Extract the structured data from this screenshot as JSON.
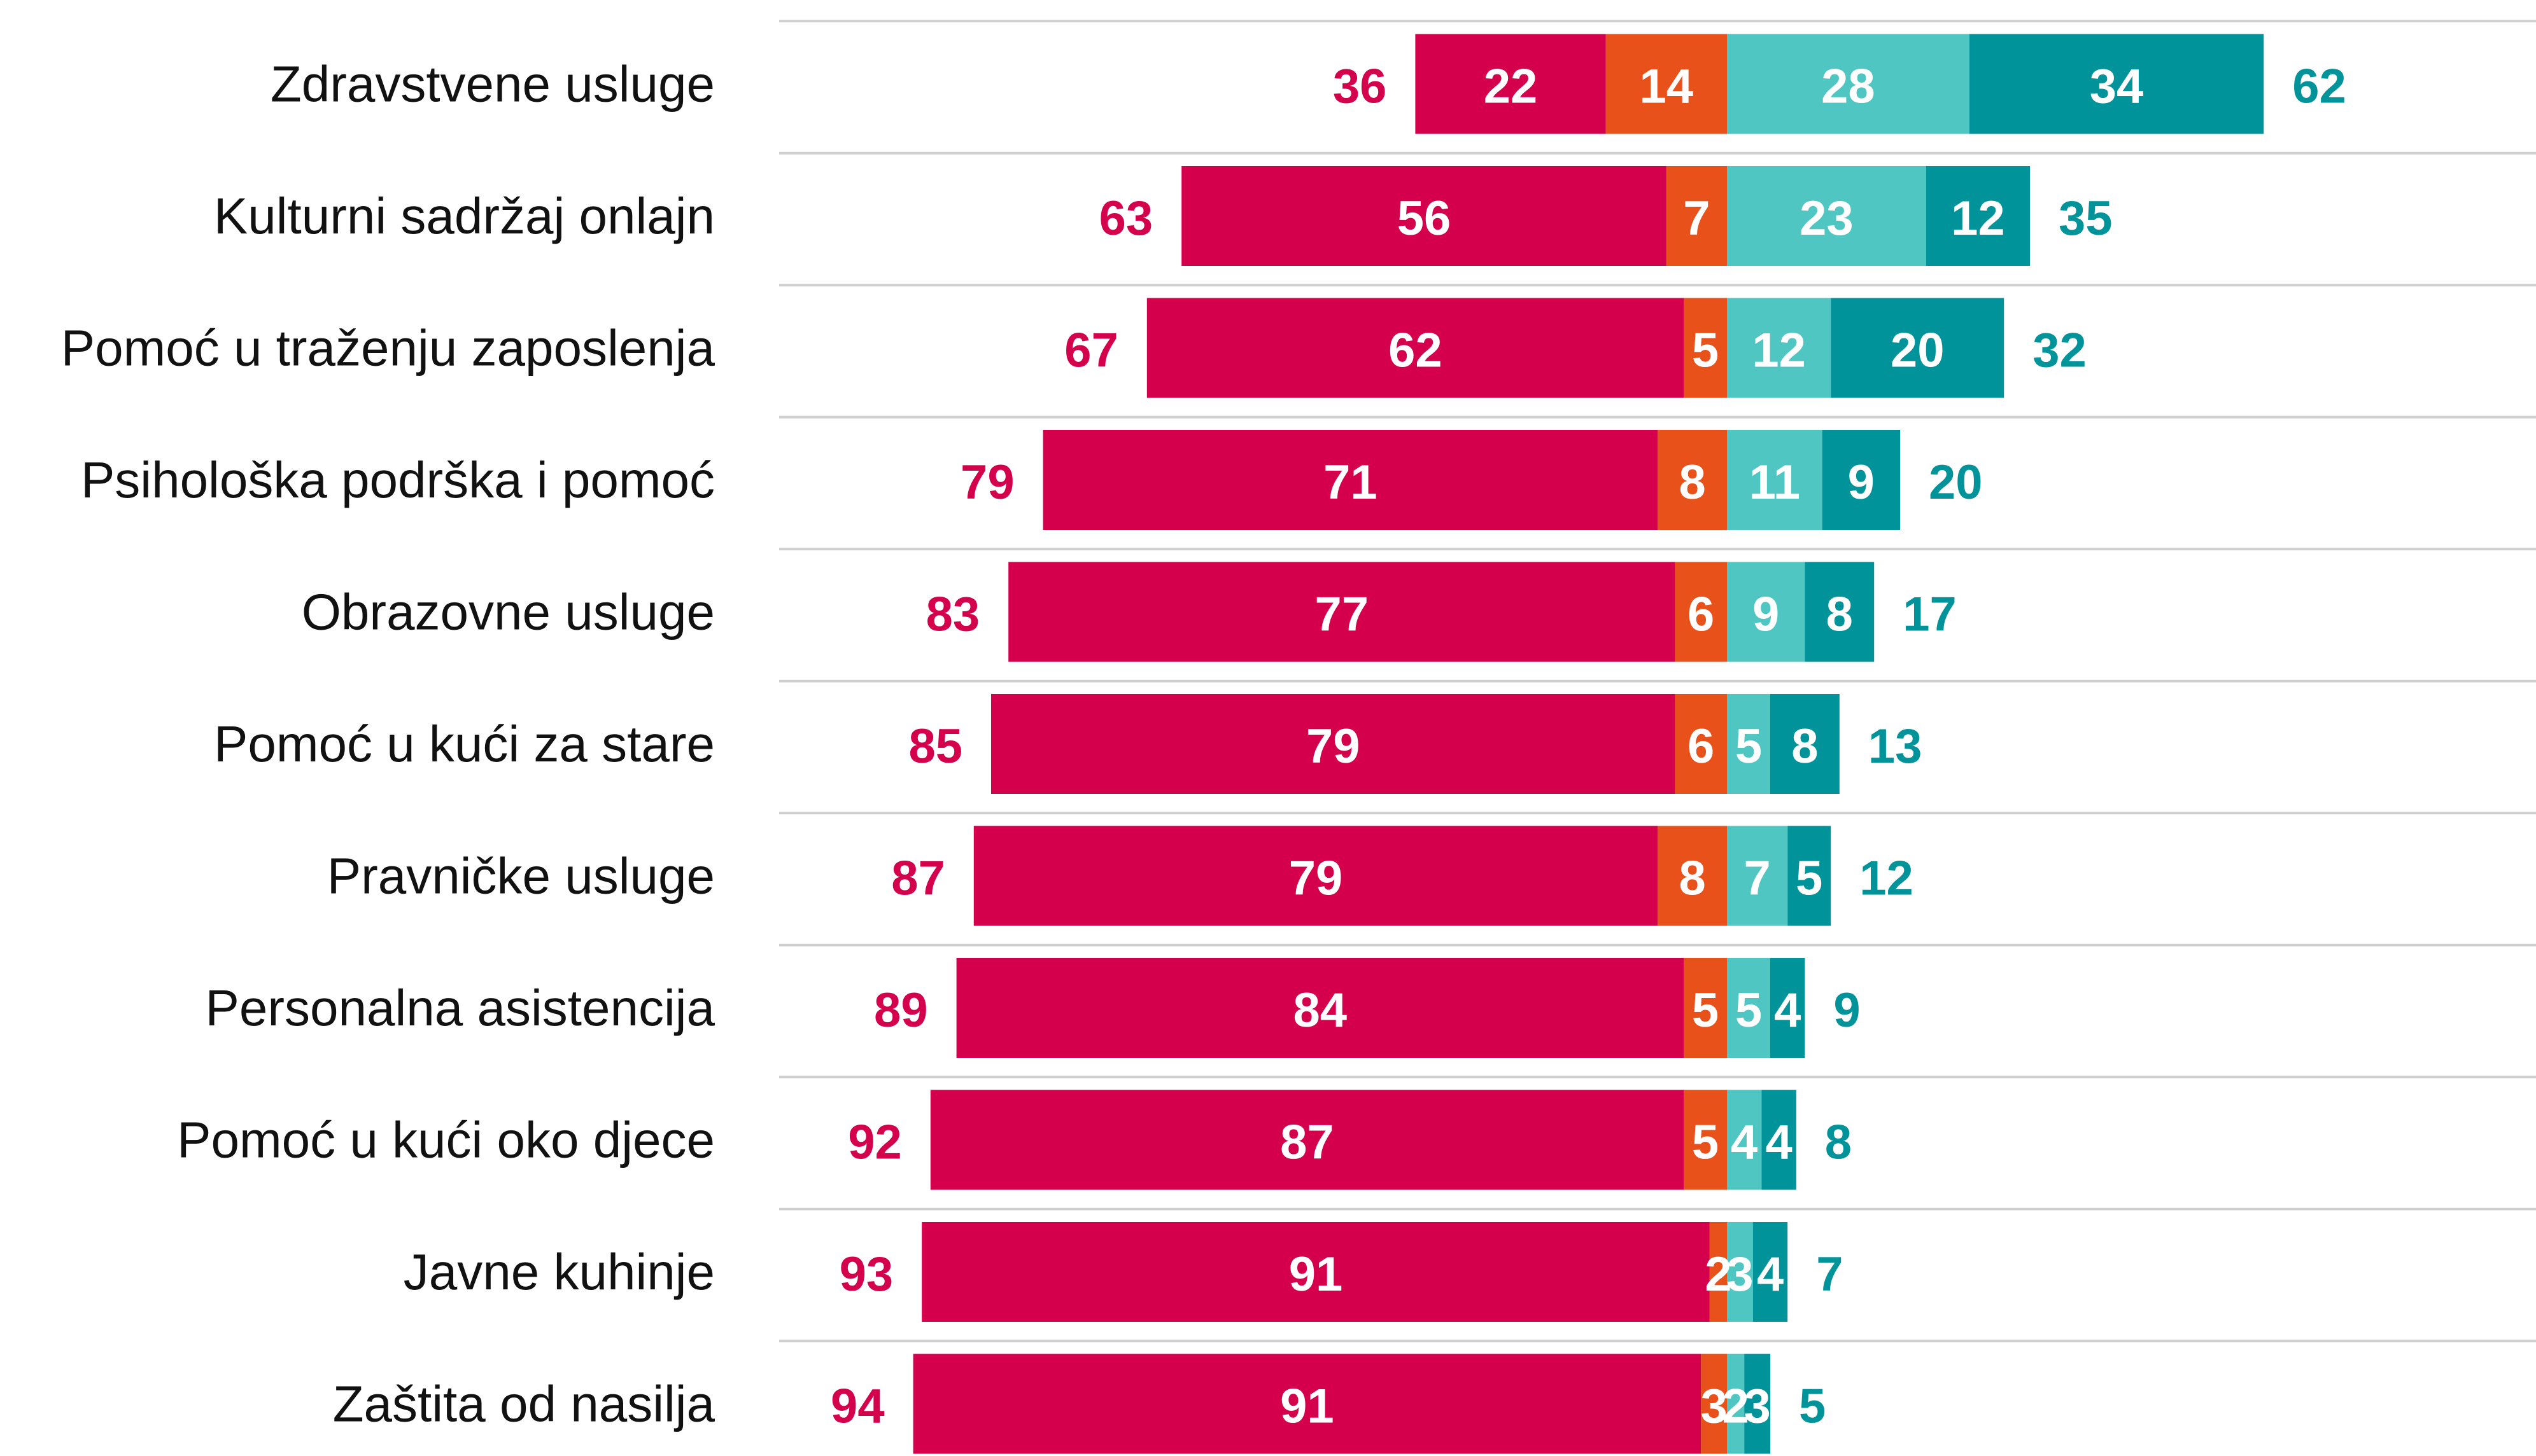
{
  "chart_data": {
    "type": "diverging_bar",
    "categories": [
      "Zdravstvene usluge",
      "Kulturni sadržaj onlajn",
      "Pomoć u traženju zaposlenja",
      "Psihološka podrška i pomoć",
      "Obrazovne usluge",
      "Pomoć u kući za stare",
      "Pravničke usluge",
      "Personalna asistencija",
      "Pomoć u kući oko djece",
      "Javne kuhinje",
      "Zaštita od nasilja"
    ],
    "series": [
      {
        "color": "#d4004c",
        "side": "negative",
        "values": [
          22,
          56,
          62,
          71,
          77,
          79,
          79,
          84,
          87,
          91,
          91
        ]
      },
      {
        "color": "#e8511a",
        "side": "negative",
        "values": [
          14,
          7,
          5,
          8,
          6,
          6,
          8,
          5,
          5,
          2,
          3
        ]
      },
      {
        "color": "#4fc6c1",
        "side": "positive",
        "values": [
          28,
          23,
          12,
          11,
          9,
          5,
          7,
          5,
          4,
          3,
          2
        ]
      },
      {
        "color": "#00939a",
        "side": "positive",
        "values": [
          34,
          12,
          20,
          9,
          8,
          8,
          5,
          4,
          4,
          4,
          3
        ]
      }
    ],
    "negative_totals": {
      "color": "#d4004c",
      "values": [
        36,
        63,
        67,
        79,
        83,
        85,
        87,
        89,
        92,
        93,
        94
      ]
    },
    "positive_totals": {
      "color": "#00939a",
      "values": [
        62,
        35,
        32,
        20,
        17,
        13,
        12,
        9,
        8,
        7,
        5
      ]
    }
  }
}
